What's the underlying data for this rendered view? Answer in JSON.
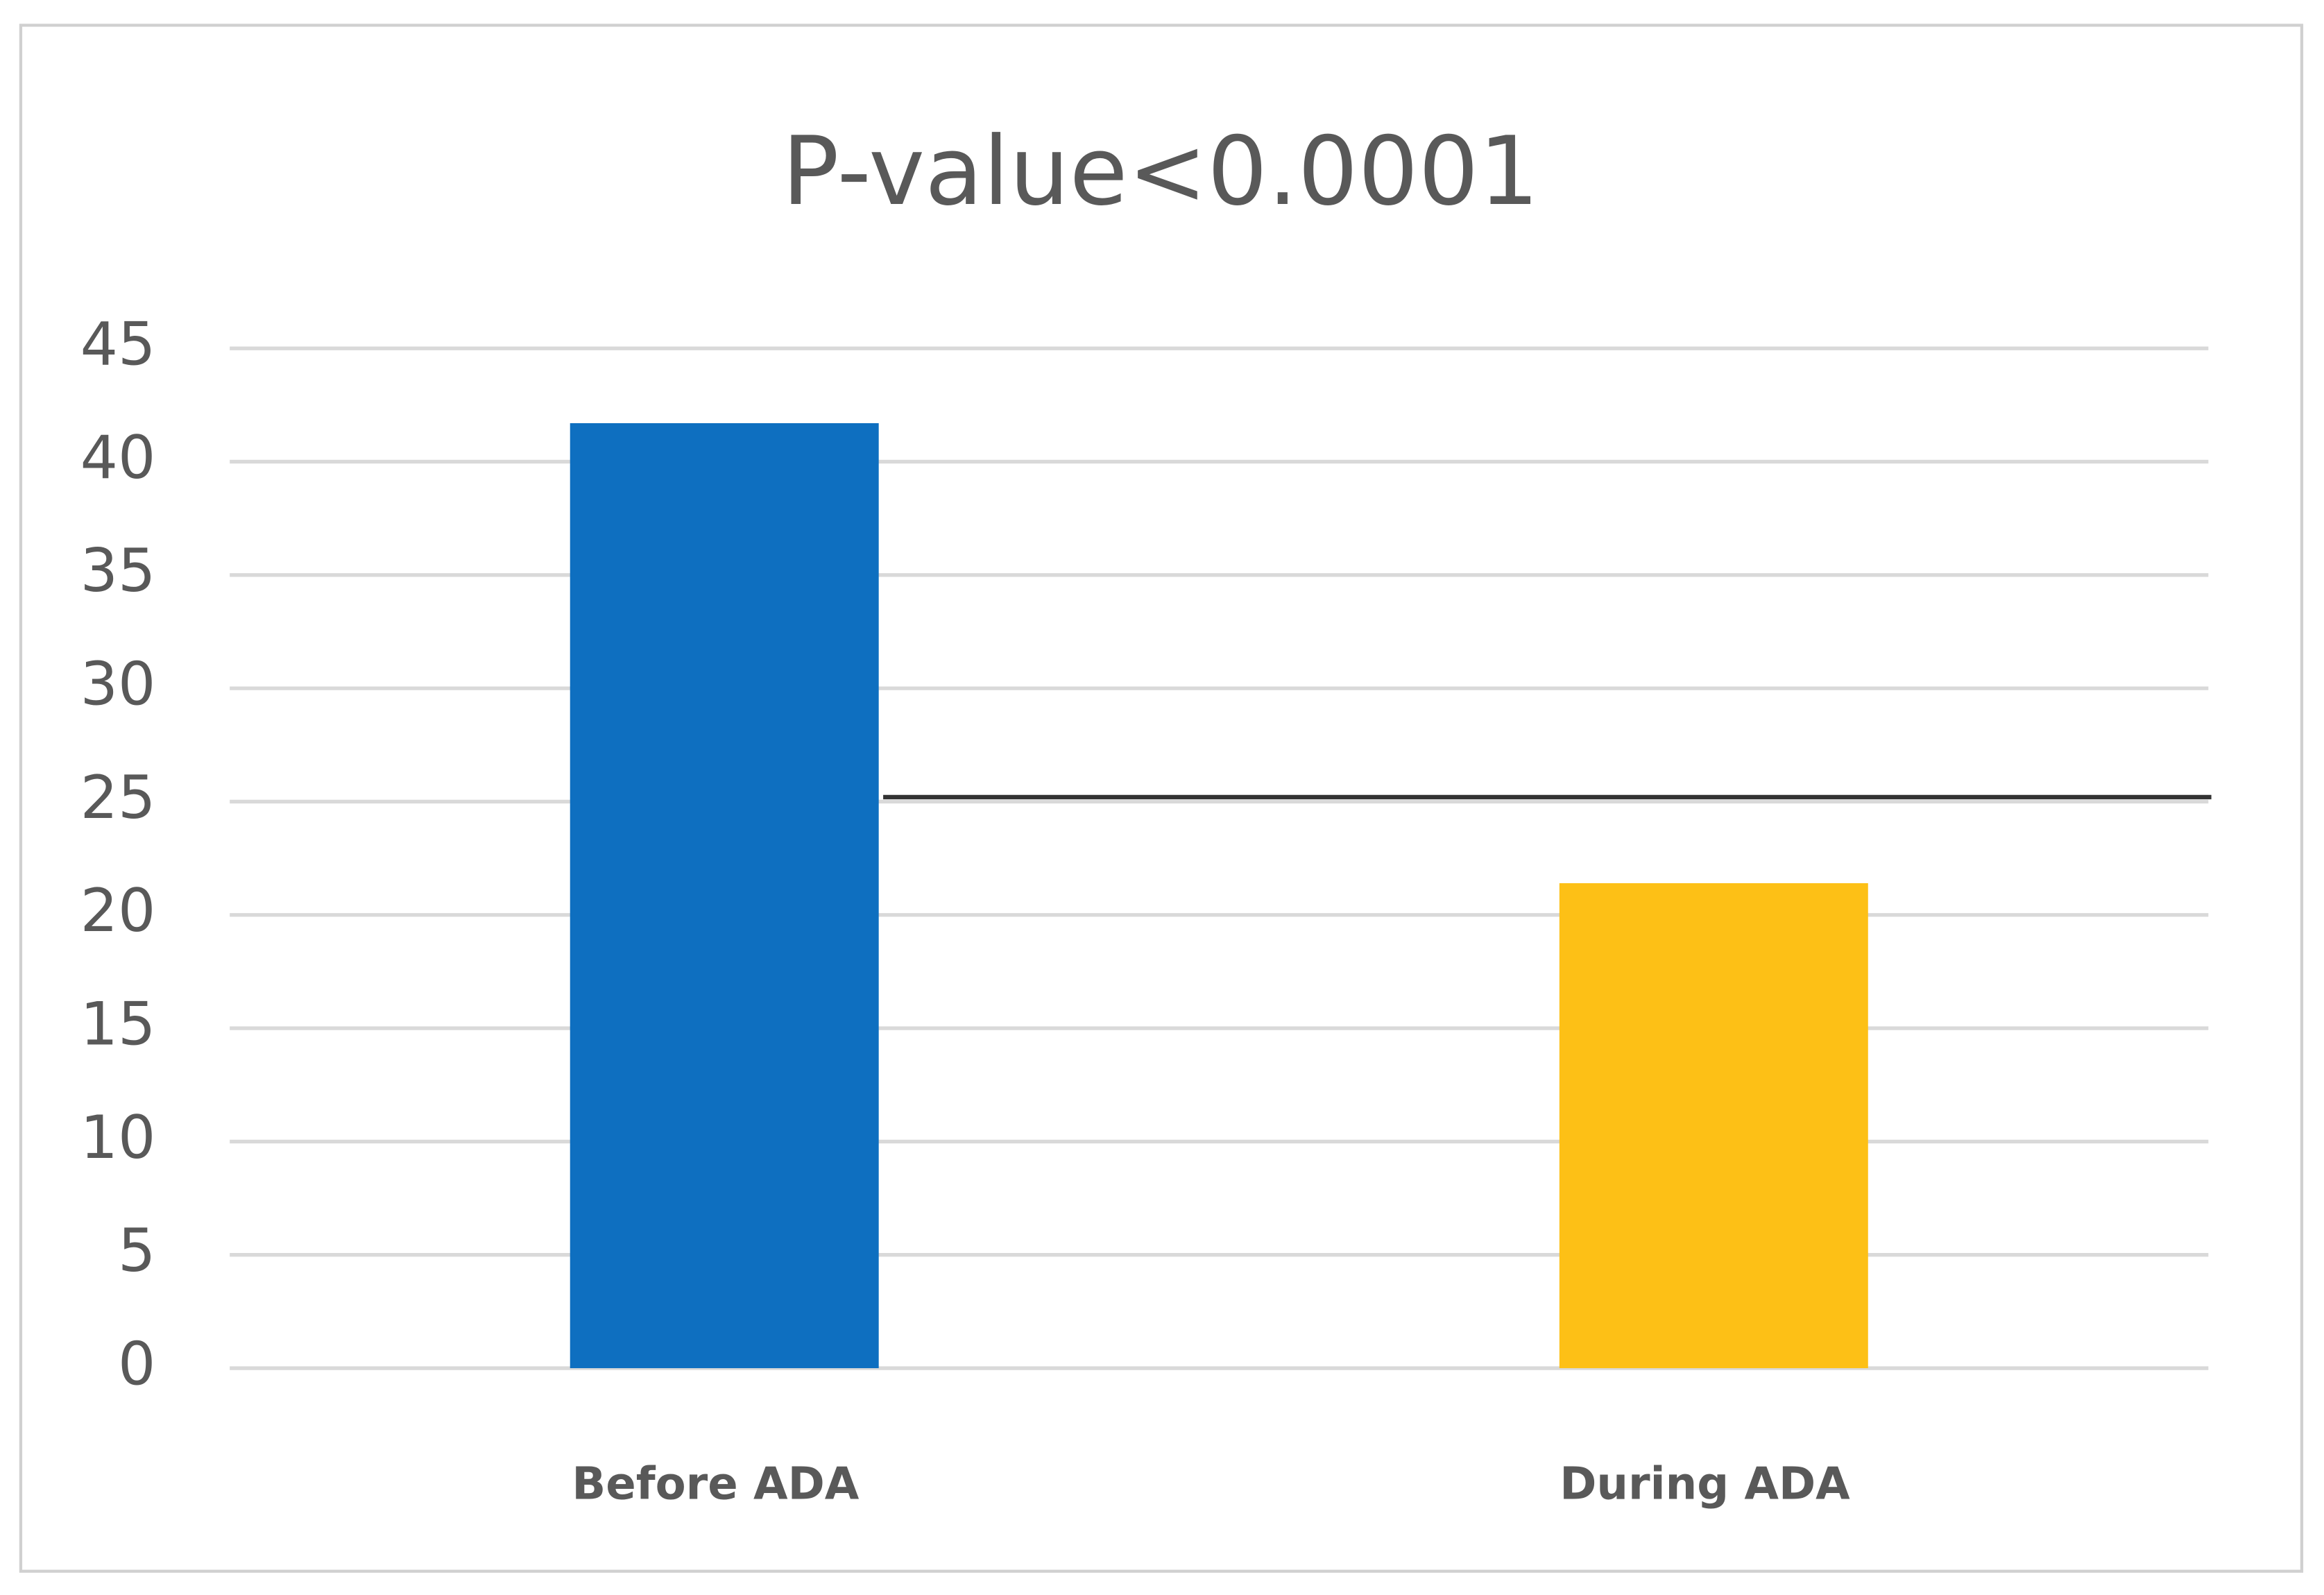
{
  "chart_data": {
    "type": "bar",
    "title": "P-value<0.0001",
    "categories": [
      "Before ADA",
      "During ADA"
    ],
    "series": [
      {
        "colors": [
          "#0e6fc0",
          "#fdc016"
        ],
        "values": [
          41.7,
          21.4
        ]
      }
    ],
    "reference_line": 25.2,
    "ylim": [
      0,
      45
    ],
    "yticks": [
      0,
      5,
      10,
      15,
      20,
      25,
      30,
      35,
      40,
      45
    ],
    "grid": true
  }
}
